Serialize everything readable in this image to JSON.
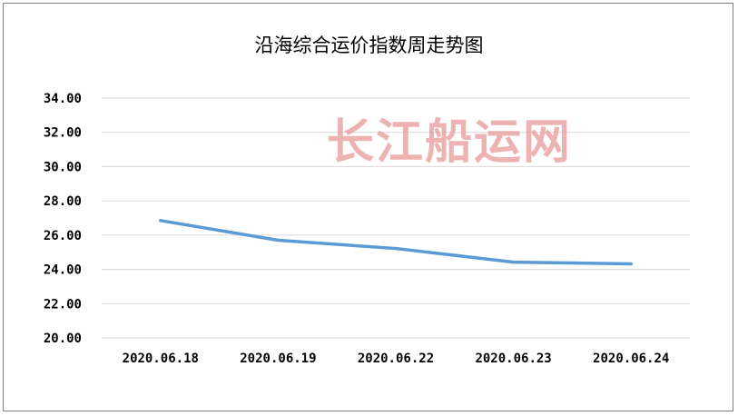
{
  "chart_data": {
    "type": "line",
    "title": "沿海综合运价指数周走势图",
    "xlabel": "",
    "ylabel": "",
    "categories": [
      "2020.06.18",
      "2020.06.19",
      "2020.06.22",
      "2020.06.23",
      "2020.06.24"
    ],
    "yticks": [
      "20.00",
      "22.00",
      "24.00",
      "26.00",
      "28.00",
      "30.00",
      "32.00",
      "34.00"
    ],
    "ylim": [
      20,
      34
    ],
    "grid": true,
    "legend": "none",
    "series": [
      {
        "values": [
          26.85,
          25.7,
          25.22,
          24.42,
          24.32
        ],
        "color": "#5b9bd5"
      }
    ],
    "watermark": "长江船运网"
  }
}
